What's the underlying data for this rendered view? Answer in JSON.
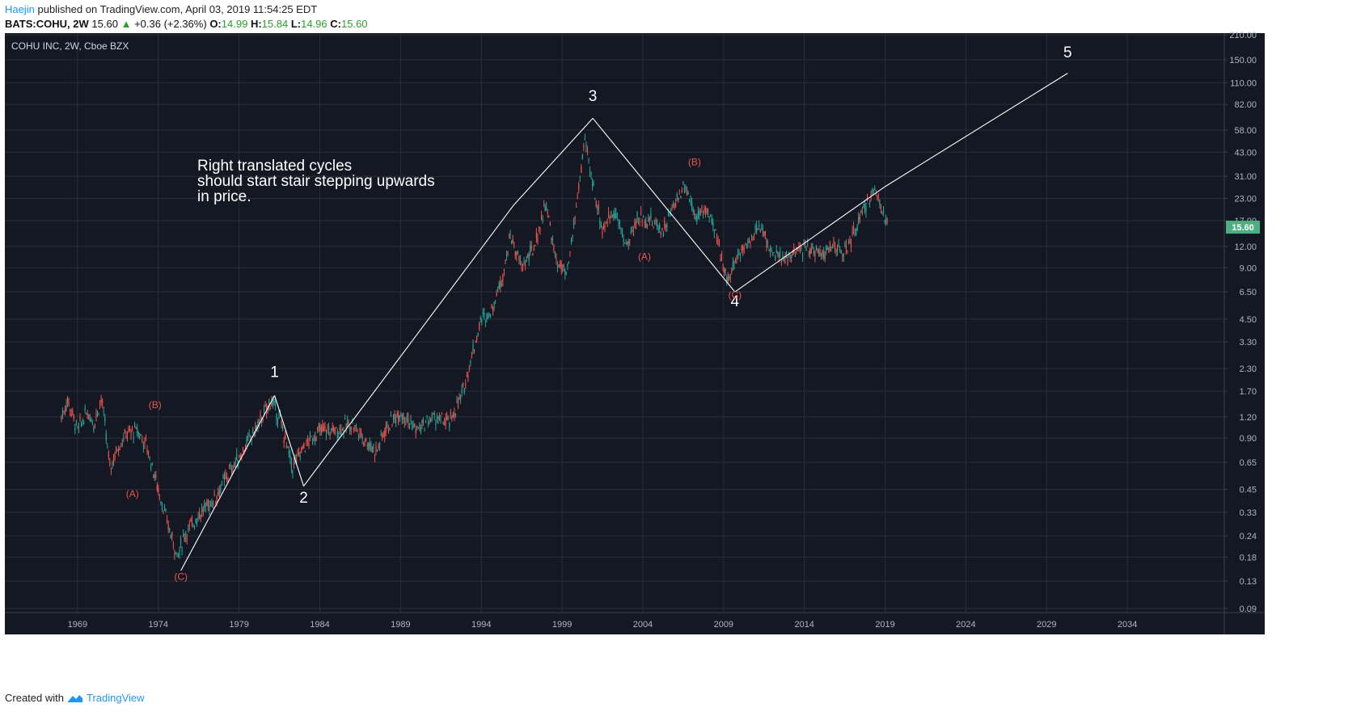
{
  "header": {
    "user": "Haejin",
    "published_text": "published on TradingView.com, April 03, 2019 11:54:25 EDT",
    "symbol_tf": "BATS:COHU, 2W",
    "last": "15.60",
    "change": "+0.36 (+2.36%)",
    "o_label": "O:",
    "o_val": "14.99",
    "h_label": "H:",
    "h_val": "15.84",
    "l_label": "L:",
    "l_val": "14.96",
    "c_label": "C:",
    "c_val": "15.60"
  },
  "footer": {
    "created_with": "Created with",
    "brand": "TradingView"
  },
  "colors": {
    "background": "#141823",
    "grid": "#2a2e39",
    "up": "#26a69a",
    "down": "#ef5350",
    "wave_line": "#ffffff",
    "corrective_label": "#ef5350",
    "price_badge": "#4caf80"
  },
  "chart_data": {
    "type": "candlestick",
    "title": "COHU INC, 2W, Cboe BZX",
    "scale": "log",
    "y_range": [
      0.085,
      215
    ],
    "x_range": [
      1964.5,
      2040
    ],
    "y_ticks": [
      "210.00",
      "150.00",
      "110.00",
      "82.00",
      "58.00",
      "43.00",
      "31.00",
      "23.00",
      "17.00",
      "12.00",
      "9.00",
      "6.50",
      "4.50",
      "3.30",
      "2.30",
      "1.70",
      "1.20",
      "0.90",
      "0.65",
      "0.45",
      "0.33",
      "0.24",
      "0.18",
      "0.13",
      "0.09"
    ],
    "x_ticks": [
      "1969",
      "1974",
      "1979",
      "1984",
      "1989",
      "1994",
      "1999",
      "2004",
      "2009",
      "2014",
      "2019",
      "2024",
      "2029",
      "2034"
    ],
    "last_price": "15.60",
    "annotation": [
      "Right translated cycles",
      "should start stair stepping upwards",
      "in price."
    ],
    "price_path": [
      [
        1968.0,
        1.2
      ],
      [
        1968.4,
        1.5
      ],
      [
        1969.0,
        1.0
      ],
      [
        1969.6,
        1.3
      ],
      [
        1970.0,
        1.1
      ],
      [
        1970.5,
        1.55
      ],
      [
        1971.0,
        0.6
      ],
      [
        1971.5,
        0.8
      ],
      [
        1972.0,
        0.95
      ],
      [
        1972.7,
        1.0
      ],
      [
        1973.3,
        0.8
      ],
      [
        1974.0,
        0.45
      ],
      [
        1974.5,
        0.3
      ],
      [
        1975.2,
        0.18
      ],
      [
        1975.6,
        0.24
      ],
      [
        1976.5,
        0.32
      ],
      [
        1977.5,
        0.4
      ],
      [
        1978.3,
        0.55
      ],
      [
        1979.0,
        0.7
      ],
      [
        1980.0,
        1.0
      ],
      [
        1981.0,
        1.5
      ],
      [
        1981.6,
        1.1
      ],
      [
        1982.3,
        0.6
      ],
      [
        1983.0,
        0.8
      ],
      [
        1984.0,
        1.0
      ],
      [
        1985.0,
        1.0
      ],
      [
        1986.0,
        1.1
      ],
      [
        1986.7,
        0.9
      ],
      [
        1987.5,
        0.75
      ],
      [
        1988.0,
        1.0
      ],
      [
        1989.0,
        1.3
      ],
      [
        1990.0,
        1.0
      ],
      [
        1991.0,
        1.2
      ],
      [
        1992.0,
        1.1
      ],
      [
        1992.8,
        1.6
      ],
      [
        1993.5,
        3.0
      ],
      [
        1994.0,
        4.5
      ],
      [
        1994.6,
        5.0
      ],
      [
        1995.3,
        8.0
      ],
      [
        1995.8,
        14.0
      ],
      [
        1996.5,
        9.0
      ],
      [
        1997.3,
        12.0
      ],
      [
        1998.0,
        22.0
      ],
      [
        1998.6,
        10.0
      ],
      [
        1999.3,
        8.0
      ],
      [
        1999.8,
        18.0
      ],
      [
        2000.4,
        50.0
      ],
      [
        2000.9,
        28.0
      ],
      [
        2001.5,
        15.0
      ],
      [
        2002.2,
        20.0
      ],
      [
        2003.0,
        12.0
      ],
      [
        2003.7,
        18.0
      ],
      [
        2004.5,
        17.0
      ],
      [
        2005.3,
        15.0
      ],
      [
        2006.0,
        22.0
      ],
      [
        2006.6,
        28.0
      ],
      [
        2007.3,
        18.0
      ],
      [
        2008.0,
        20.0
      ],
      [
        2008.7,
        12.0
      ],
      [
        2009.3,
        7.5
      ],
      [
        2009.9,
        11.0
      ],
      [
        2010.6,
        13.0
      ],
      [
        2011.3,
        16.0
      ],
      [
        2012.0,
        11.0
      ],
      [
        2012.7,
        10.0
      ],
      [
        2013.4,
        11.0
      ],
      [
        2014.2,
        12.0
      ],
      [
        2015.0,
        11.0
      ],
      [
        2015.8,
        12.0
      ],
      [
        2016.5,
        11.0
      ],
      [
        2017.3,
        16.0
      ],
      [
        2017.9,
        22.0
      ],
      [
        2018.5,
        26.0
      ],
      [
        2019.0,
        17.0
      ],
      [
        2019.2,
        15.6
      ]
    ],
    "wave_lines": [
      [
        1975.4,
        0.15
      ],
      [
        1981.2,
        1.6
      ],
      [
        1983.0,
        0.47
      ],
      [
        1996.0,
        21.0
      ],
      [
        2000.9,
        68.0
      ],
      [
        2009.7,
        6.5
      ],
      [
        2019.0,
        27.0
      ],
      [
        2030.3,
        125.0
      ]
    ],
    "wave_labels": [
      {
        "text": "1",
        "x": 1981.2,
        "y": 2.05
      },
      {
        "text": "2",
        "x": 1983.0,
        "y": 0.375
      },
      {
        "text": "3",
        "x": 2000.9,
        "y": 86.0
      },
      {
        "text": "4",
        "x": 2009.7,
        "y": 5.35
      },
      {
        "text": "5",
        "x": 2030.3,
        "y": 155.0
      }
    ],
    "corrective_labels": [
      {
        "text": "(A)",
        "x": 1972.4,
        "y": 0.405
      },
      {
        "text": "(B)",
        "x": 1973.8,
        "y": 1.35
      },
      {
        "text": "(C)",
        "x": 1975.4,
        "y": 0.132
      },
      {
        "text": "(A)",
        "x": 2004.1,
        "y": 10.0
      },
      {
        "text": "(B)",
        "x": 2007.2,
        "y": 36.0
      },
      {
        "text": "(C)",
        "x": 2009.7,
        "y": 5.95
      }
    ]
  }
}
